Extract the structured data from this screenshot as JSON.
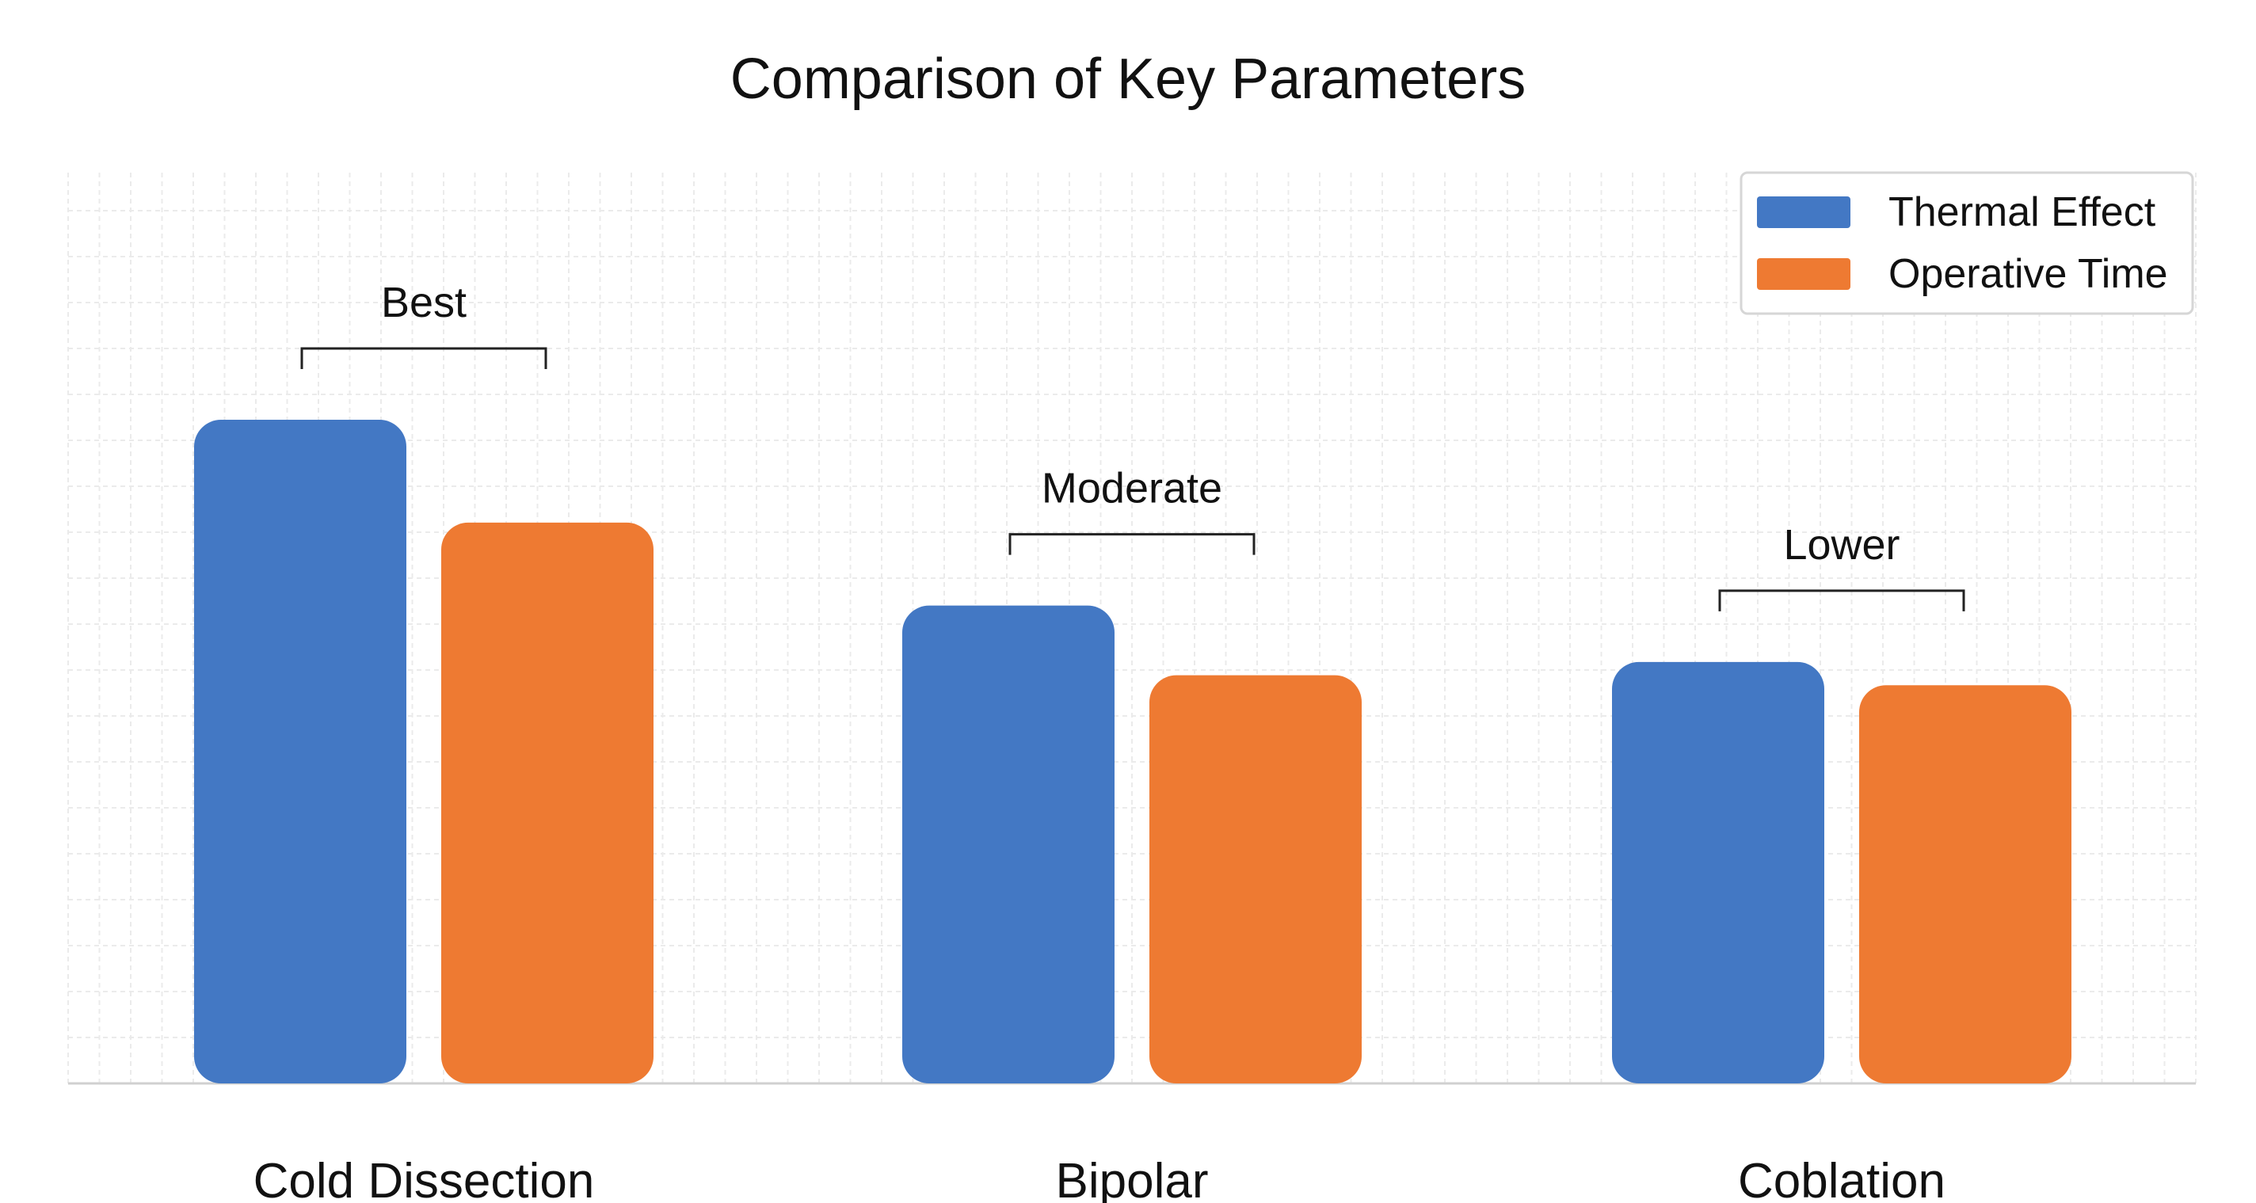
{
  "chart_data": {
    "type": "bar",
    "title": "Comparison of Key Parameters",
    "xlabel": "",
    "ylabel": "",
    "ylim": [
      0,
      100
    ],
    "grid": true,
    "legend_position": "top-right",
    "categories": [
      "Cold Dissection",
      "Bipolar",
      "Coblation"
    ],
    "series": [
      {
        "name": "Thermal Effect",
        "color": "#4378C4",
        "values": [
          100,
          72,
          63.5
        ]
      },
      {
        "name": "Operative Time",
        "color": "#EE7A32",
        "values": [
          84.5,
          61.5,
          60
        ]
      }
    ],
    "annotations": [
      {
        "category": "Cold Dissection",
        "text": "Best"
      },
      {
        "category": "Bipolar",
        "text": "Moderate"
      },
      {
        "category": "Coblation",
        "text": "Lower"
      }
    ]
  }
}
